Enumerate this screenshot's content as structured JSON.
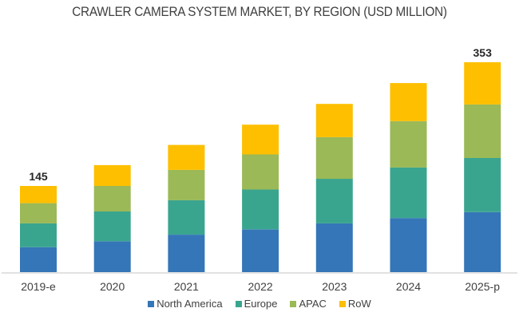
{
  "chart_data": {
    "type": "bar",
    "stacked": true,
    "title": "CRAWLER CAMERA SYSTEM MARKET, BY REGION (USD MILLION)",
    "xlabel": "",
    "ylabel": "",
    "categories": [
      "2019-e",
      "2020",
      "2021",
      "2022",
      "2023",
      "2024",
      "2025-p"
    ],
    "series": [
      {
        "name": "North America",
        "color": "#3476b7",
        "values": [
          42,
          52,
          63,
          72,
          82,
          91,
          101
        ]
      },
      {
        "name": "Europe",
        "color": "#3aa58f",
        "values": [
          40,
          50,
          58,
          67,
          75,
          85,
          91
        ]
      },
      {
        "name": "APAC",
        "color": "#9bb957",
        "values": [
          34,
          43,
          51,
          59,
          70,
          78,
          90
        ]
      },
      {
        "name": "RoW",
        "color": "#fdbf00",
        "values": [
          29,
          35,
          42,
          50,
          56,
          64,
          71
        ]
      }
    ],
    "totals_labels": [
      {
        "category": "2019-e",
        "text": "145"
      },
      {
        "category": "2025-p",
        "text": "353"
      }
    ],
    "ylim": [
      0,
      353
    ],
    "grid": false,
    "y_axis_visible": false,
    "legend_position": "bottom"
  }
}
